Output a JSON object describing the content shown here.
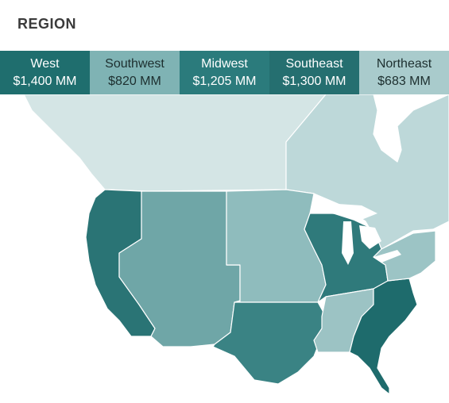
{
  "header": {
    "title": "REGION"
  },
  "regions": [
    {
      "key": "west",
      "name": "West",
      "value": "$1,400 MM",
      "color": "#1f6e6e",
      "text_color": "#ffffff"
    },
    {
      "key": "southwest",
      "name": "Southwest",
      "value": "$820 MM",
      "color": "#7fb3b4",
      "text_color": "#1d2f2f"
    },
    {
      "key": "midwest",
      "name": "Midwest",
      "value": "$1,205 MM",
      "color": "#2b7b7c",
      "text_color": "#ffffff"
    },
    {
      "key": "southeast",
      "name": "Southeast",
      "value": "$1,300 MM",
      "color": "#256f70",
      "text_color": "#ffffff"
    },
    {
      "key": "northeast",
      "name": "Northeast",
      "value": "$683 MM",
      "color": "#a9cbcc",
      "text_color": "#1d2f2f"
    }
  ],
  "map_colors": {
    "canada": "#d4e5e5",
    "canada_east": "#bdd8d9",
    "water": "#ffffff",
    "west": "#2a7475",
    "southwest": "#6fa6a7",
    "midwest": "#2f7a7b",
    "plains": "#8fbcbd",
    "texas": "#3a8384",
    "southeast": "#1e6b6c",
    "tennessee": "#9cc3c4",
    "northeast": "#9cc4c5"
  }
}
